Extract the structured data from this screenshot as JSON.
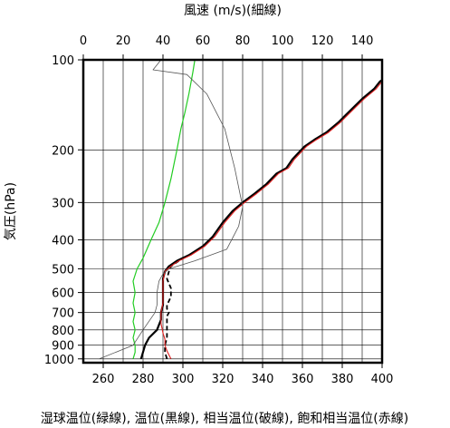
{
  "chart_data": {
    "type": "line",
    "top_axis_label": "風速 (m/s)(細線)",
    "left_axis_label": "気圧(hPa)",
    "bottom_axis_label": "湿球温位(緑線), 温位(黒線), 相当温位(破線), 飽和相当温位(赤線)",
    "x_bottom_ticks": [
      "260",
      "280",
      "300",
      "320",
      "340",
      "360",
      "380",
      "400"
    ],
    "x_top_ticks": [
      "0",
      "20",
      "40",
      "60",
      "80",
      "100",
      "120",
      "140"
    ],
    "y_ticks": [
      "100",
      "200",
      "300",
      "400",
      "500",
      "600",
      "700",
      "800",
      "900",
      "1000"
    ],
    "x_bottom_range": [
      250,
      400
    ],
    "x_top_range": [
      0,
      150
    ],
    "y_range": [
      1030,
      100
    ],
    "y_scale": "log",
    "grid": true,
    "colors": {
      "wet_bulb": "#22cc22",
      "theta": "#000000",
      "theta_e": "#000000",
      "theta_es": "#e02020",
      "wind": "#555555"
    },
    "series": [
      {
        "key": "wet_bulb",
        "axis": "bottom",
        "points": [
          [
            275,
            1000
          ],
          [
            276,
            950
          ],
          [
            276,
            900
          ],
          [
            275,
            850
          ],
          [
            276,
            800
          ],
          [
            275,
            750
          ],
          [
            276,
            700
          ],
          [
            275,
            650
          ],
          [
            276,
            600
          ],
          [
            275,
            550
          ],
          [
            277,
            500
          ],
          [
            280,
            460
          ],
          [
            284,
            400
          ],
          [
            288,
            350
          ],
          [
            291,
            300
          ],
          [
            294,
            250
          ],
          [
            297,
            200
          ],
          [
            299,
            170
          ],
          [
            301,
            150
          ],
          [
            303,
            130
          ],
          [
            305,
            110
          ],
          [
            306,
            100
          ]
        ]
      },
      {
        "key": "theta",
        "axis": "bottom",
        "points": [
          [
            279,
            1000
          ],
          [
            281,
            900
          ],
          [
            283,
            850
          ],
          [
            287,
            800
          ],
          [
            289,
            740
          ],
          [
            289,
            700
          ],
          [
            290,
            660
          ],
          [
            290,
            620
          ],
          [
            290,
            580
          ],
          [
            290,
            540
          ],
          [
            291,
            510
          ],
          [
            293,
            490
          ],
          [
            297,
            470
          ],
          [
            303,
            450
          ],
          [
            310,
            420
          ],
          [
            315,
            390
          ],
          [
            320,
            350
          ],
          [
            325,
            320
          ],
          [
            330,
            300
          ],
          [
            336,
            280
          ],
          [
            342,
            260
          ],
          [
            347,
            240
          ],
          [
            352,
            230
          ],
          [
            355,
            215
          ],
          [
            361,
            195
          ],
          [
            366,
            185
          ],
          [
            372,
            175
          ],
          [
            378,
            162
          ],
          [
            383,
            150
          ],
          [
            390,
            135
          ],
          [
            396,
            125
          ],
          [
            399,
            118
          ],
          [
            400,
            117
          ]
        ]
      },
      {
        "key": "theta_e",
        "axis": "bottom",
        "points": [
          [
            292,
            1000
          ],
          [
            291,
            950
          ],
          [
            291,
            900
          ],
          [
            292,
            850
          ],
          [
            292,
            800
          ],
          [
            292,
            760
          ],
          [
            292,
            720
          ],
          [
            293,
            700
          ],
          [
            292,
            680
          ],
          [
            292,
            660
          ],
          [
            293,
            640
          ],
          [
            294,
            620
          ],
          [
            294,
            580
          ],
          [
            292,
            540
          ],
          [
            293,
            510
          ],
          [
            294,
            490
          ],
          [
            298,
            470
          ],
          [
            303,
            450
          ]
        ]
      },
      {
        "key": "theta_es",
        "axis": "bottom",
        "points": [
          [
            294,
            1000
          ],
          [
            293,
            970
          ],
          [
            292,
            940
          ],
          [
            291,
            900
          ],
          [
            291,
            860
          ],
          [
            290,
            820
          ],
          [
            289,
            760
          ],
          [
            289,
            700
          ],
          [
            290,
            650
          ],
          [
            290,
            600
          ],
          [
            290,
            550
          ],
          [
            291,
            510
          ],
          [
            294,
            490
          ],
          [
            298,
            470
          ],
          [
            304,
            450
          ],
          [
            311,
            420
          ],
          [
            316,
            390
          ],
          [
            321,
            350
          ],
          [
            326,
            320
          ],
          [
            331,
            300
          ],
          [
            337,
            280
          ],
          [
            343,
            260
          ],
          [
            348,
            240
          ],
          [
            353,
            230
          ],
          [
            356,
            215
          ],
          [
            362,
            195
          ],
          [
            367,
            185
          ],
          [
            373,
            175
          ],
          [
            379,
            162
          ],
          [
            384,
            150
          ],
          [
            391,
            135
          ],
          [
            397,
            125
          ],
          [
            400,
            118
          ]
        ]
      },
      {
        "key": "wind",
        "axis": "top",
        "points": [
          [
            8,
            1000
          ],
          [
            25,
            900
          ],
          [
            30,
            800
          ],
          [
            36,
            700
          ],
          [
            37,
            660
          ],
          [
            37,
            600
          ],
          [
            38,
            550
          ],
          [
            40,
            520
          ],
          [
            43,
            500
          ],
          [
            56,
            470
          ],
          [
            72,
            430
          ],
          [
            78,
            360
          ],
          [
            80,
            310
          ],
          [
            76,
            230
          ],
          [
            71,
            170
          ],
          [
            62,
            130
          ],
          [
            52,
            112
          ],
          [
            35,
            108
          ],
          [
            39,
            100
          ]
        ]
      }
    ]
  }
}
